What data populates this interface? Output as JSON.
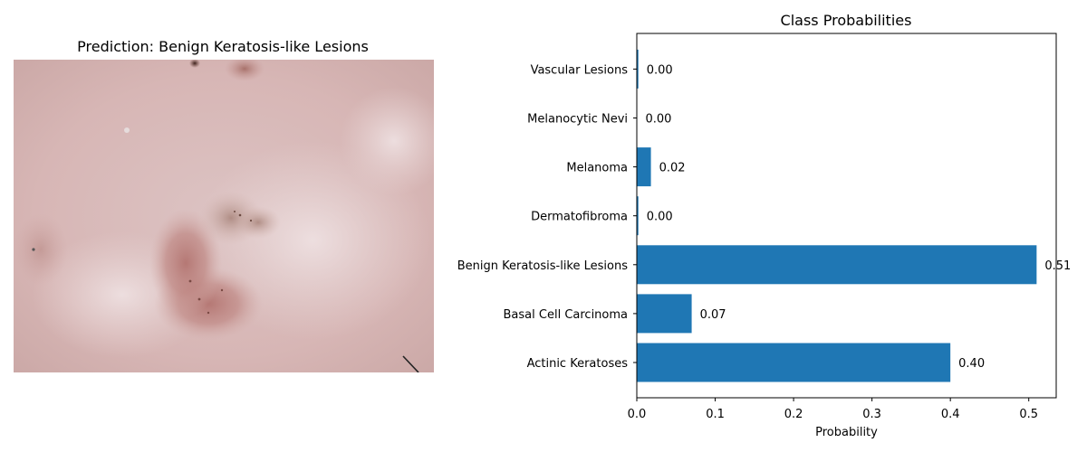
{
  "image_panel": {
    "title": "Prediction: Benign Keratosis-like Lesions"
  },
  "chart_data": {
    "type": "bar",
    "orientation": "horizontal",
    "title": "Class Probabilities",
    "xlabel": "Probability",
    "ylabel": "",
    "categories": [
      "Actinic Keratoses",
      "Basal Cell Carcinoma",
      "Benign Keratosis-like Lesions",
      "Dermatofibroma",
      "Melanoma",
      "Melanocytic Nevi",
      "Vascular Lesions"
    ],
    "values": [
      0.4,
      0.07,
      0.51,
      0.002,
      0.018,
      0.0005,
      0.002
    ],
    "value_labels": [
      "0.40",
      "0.07",
      "0.51",
      "0.00",
      "0.02",
      "0.00",
      "0.00"
    ],
    "xlim": [
      0,
      0.535
    ],
    "xticks": [
      0.0,
      0.1,
      0.2,
      0.3,
      0.4,
      0.5
    ],
    "xtick_labels": [
      "0.0",
      "0.1",
      "0.2",
      "0.3",
      "0.4",
      "0.5"
    ],
    "grid": false,
    "bar_color": "#1f77b4"
  }
}
